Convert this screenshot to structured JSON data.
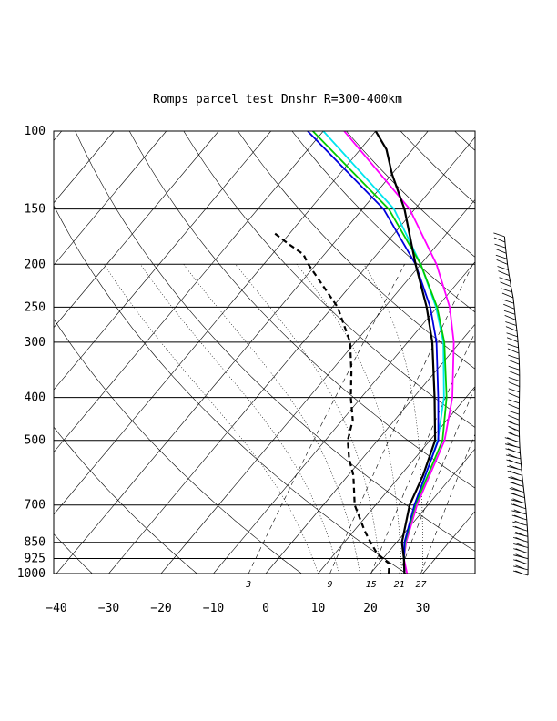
{
  "chart_data": {
    "type": "skew-t",
    "title": "Romps parcel test Dnshr R=300-400km",
    "pressure_levels": [
      100,
      150,
      200,
      250,
      300,
      400,
      500,
      700,
      850,
      925,
      1000
    ],
    "pressure_labels": [
      "100",
      "150",
      "200",
      "250",
      "300",
      "400",
      "500",
      "700",
      "850",
      "925",
      "1000"
    ],
    "temperature_ticks": [
      -40,
      -30,
      -20,
      -10,
      0,
      10,
      20,
      30
    ],
    "temperature_labels": [
      "−40",
      "−30",
      "−20",
      "−10",
      "0",
      "10",
      "20",
      "30"
    ],
    "mixing_ratio_labels": [
      "3",
      "9",
      "15",
      "21",
      "27"
    ],
    "mixing_ratio_values": [
      3,
      9,
      15,
      21,
      27
    ],
    "colors": {
      "environment": "#000000",
      "dewpoint": "#000000",
      "magenta": "#ff00ff",
      "green": "#00cc00",
      "cyan": "#00e5ee",
      "blue": "#0000dd"
    },
    "series": [
      {
        "name": "environment_temperature",
        "color": "black",
        "style": "solid",
        "points": [
          [
            1000,
            26.5
          ],
          [
            925,
            24
          ],
          [
            850,
            21
          ],
          [
            700,
            16.5
          ],
          [
            600,
            14.3
          ],
          [
            500,
            11
          ],
          [
            400,
            4
          ],
          [
            300,
            -5.3
          ],
          [
            250,
            -12
          ],
          [
            200,
            -21
          ],
          [
            150,
            -32
          ],
          [
            125,
            -40
          ],
          [
            110,
            -45
          ],
          [
            100,
            -50
          ]
        ]
      },
      {
        "name": "environment_dewpoint",
        "color": "black",
        "style": "dashed",
        "points": [
          [
            1000,
            23.5
          ],
          [
            950,
            22
          ],
          [
            925,
            20
          ],
          [
            900,
            18
          ],
          [
            850,
            15
          ],
          [
            800,
            12
          ],
          [
            700,
            6
          ],
          [
            600,
            1
          ],
          [
            550,
            -2.5
          ],
          [
            500,
            -5.7
          ],
          [
            450,
            -8
          ],
          [
            400,
            -12
          ],
          [
            350,
            -16
          ],
          [
            300,
            -21
          ],
          [
            250,
            -29
          ],
          [
            200,
            -41.5
          ],
          [
            190,
            -44
          ],
          [
            180,
            -48.5
          ],
          [
            170,
            -53
          ]
        ]
      },
      {
        "name": "parcel_magenta",
        "color": "magenta",
        "style": "solid",
        "points": [
          [
            1000,
            27
          ],
          [
            925,
            24
          ],
          [
            850,
            21.8
          ],
          [
            700,
            17.9
          ],
          [
            500,
            12.8
          ],
          [
            400,
            7.4
          ],
          [
            300,
            -1.2
          ],
          [
            250,
            -7.6
          ],
          [
            200,
            -17
          ],
          [
            150,
            -31
          ],
          [
            100,
            -56
          ]
        ]
      },
      {
        "name": "parcel_green",
        "color": "green",
        "style": "solid",
        "points": [
          [
            1000,
            26.5
          ],
          [
            925,
            24
          ],
          [
            850,
            21.6
          ],
          [
            700,
            17.6
          ],
          [
            500,
            12.4
          ],
          [
            400,
            6.3
          ],
          [
            300,
            -3
          ],
          [
            250,
            -10
          ],
          [
            200,
            -20
          ],
          [
            150,
            -35
          ],
          [
            100,
            -62
          ]
        ]
      },
      {
        "name": "parcel_cyan",
        "color": "cyan",
        "style": "solid",
        "points": [
          [
            1000,
            26.5
          ],
          [
            925,
            24
          ],
          [
            850,
            21.6
          ],
          [
            700,
            17.5
          ],
          [
            500,
            11.5
          ],
          [
            400,
            5.8
          ],
          [
            300,
            -3.2
          ],
          [
            250,
            -10.2
          ],
          [
            200,
            -20
          ],
          [
            150,
            -34
          ],
          [
            100,
            -60
          ]
        ]
      },
      {
        "name": "parcel_blue",
        "color": "blue",
        "style": "solid",
        "points": [
          [
            1000,
            26.5
          ],
          [
            925,
            24
          ],
          [
            850,
            21.5
          ],
          [
            700,
            17.4
          ],
          [
            500,
            11.6
          ],
          [
            400,
            4.7
          ],
          [
            300,
            -4.5
          ],
          [
            250,
            -11.3
          ],
          [
            200,
            -21
          ],
          [
            150,
            -36
          ],
          [
            100,
            -63
          ]
        ]
      }
    ]
  }
}
